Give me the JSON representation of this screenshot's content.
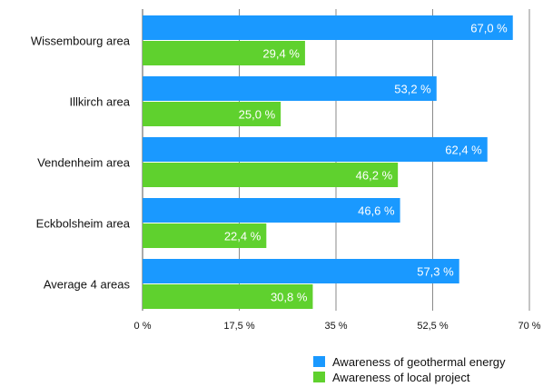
{
  "chart_data": {
    "type": "bar",
    "orientation": "horizontal",
    "categories": [
      "Wissembourg area",
      "Illkirch area",
      "Vendenheim area",
      "Eckbolsheim area",
      "Average 4 areas"
    ],
    "series": [
      {
        "name": "Awareness of geothermal energy",
        "color": "#1a99ff",
        "values": [
          67.0,
          53.2,
          62.4,
          46.6,
          57.3
        ],
        "labels": [
          "67,0 %",
          "53,2 %",
          "62,4 %",
          "46,6 %",
          "57,3 %"
        ]
      },
      {
        "name": "Awareness of local project",
        "color": "#5fd12e",
        "values": [
          29.4,
          25.0,
          46.2,
          22.4,
          30.8
        ],
        "labels": [
          "29,4 %",
          "25,0 %",
          "46,2 %",
          "22,4 %",
          "30,8 %"
        ]
      }
    ],
    "x_ticks": [
      0,
      17.5,
      35,
      52.5,
      70
    ],
    "x_tick_labels": [
      "0 %",
      "17,5 %",
      "35 %",
      "52,5 %",
      "70 %"
    ],
    "xlim": [
      0,
      70
    ],
    "grid": true,
    "legend_position": "bottom-right"
  }
}
